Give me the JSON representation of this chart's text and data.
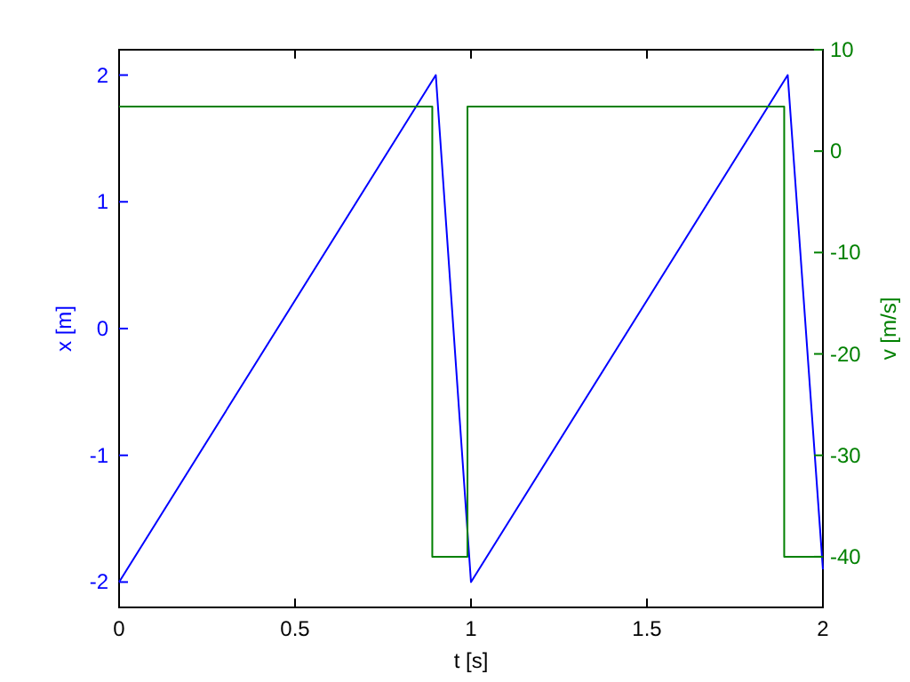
{
  "chart_data": {
    "type": "line",
    "xlabel": "t [s]",
    "ylabel": "x [m]",
    "y2label": "v [m/s]",
    "xlim": [
      0,
      2
    ],
    "xticks": [
      0,
      0.5,
      1,
      1.5,
      2
    ],
    "ylim": [
      -2.2,
      2.2
    ],
    "yticks": [
      -2,
      -1,
      0,
      1,
      2
    ],
    "y2lim": [
      -45,
      10
    ],
    "y2ticks": [
      -40,
      -30,
      -20,
      -10,
      0,
      10
    ],
    "grid": false,
    "series": [
      {
        "color": "#0000ff",
        "x": [
          0,
          0.9,
          1.0,
          1.9,
          2.0
        ],
        "values": [
          -2,
          2,
          -2,
          2,
          -1.9
        ]
      },
      {
        "color": "#008000",
        "axis": "y2",
        "x": [
          0,
          0.89,
          0.89,
          0.99,
          0.99,
          1.89,
          1.89,
          2.0
        ],
        "values": [
          4.4,
          4.4,
          -40,
          -40,
          4.4,
          4.4,
          -40,
          -40
        ]
      }
    ]
  }
}
